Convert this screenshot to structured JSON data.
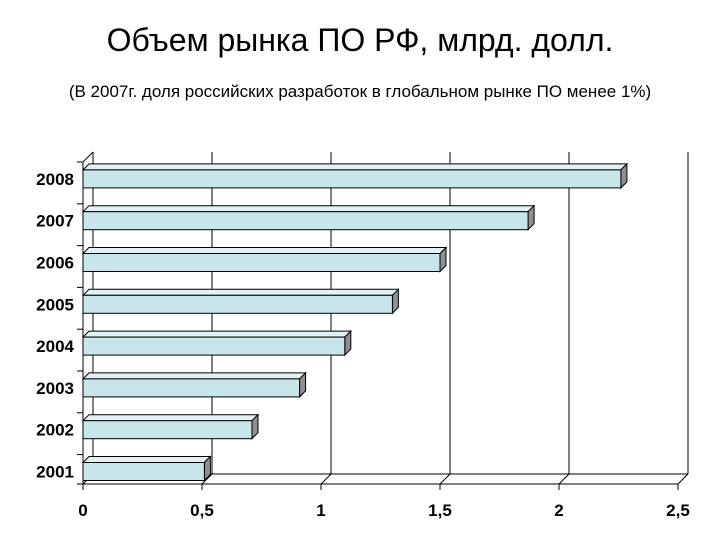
{
  "chart_data": {
    "type": "bar",
    "orientation": "horizontal",
    "style": "3d",
    "title": "Объем рынка ПО РФ, млрд. долл.",
    "subtitle": "(В 2007г. доля российских разработок в глобальном рынке ПО менее 1%)",
    "categories": [
      "2001",
      "2002",
      "2003",
      "2004",
      "2005",
      "2006",
      "2007",
      "2008"
    ],
    "values": [
      0.51,
      0.71,
      0.91,
      1.1,
      1.3,
      1.5,
      1.87,
      2.26
    ],
    "xlim": [
      0,
      2.5
    ],
    "x_ticks": [
      0,
      0.5,
      1,
      1.5,
      2,
      2.5
    ],
    "x_tick_labels": [
      "0",
      "0,5",
      "1",
      "1,5",
      "2",
      "2,5"
    ],
    "xlabel": "",
    "ylabel": "",
    "vertical_gridlines": true,
    "bar_color": "#c8e6ea",
    "bar_shade_color": "#8f8f8f"
  }
}
